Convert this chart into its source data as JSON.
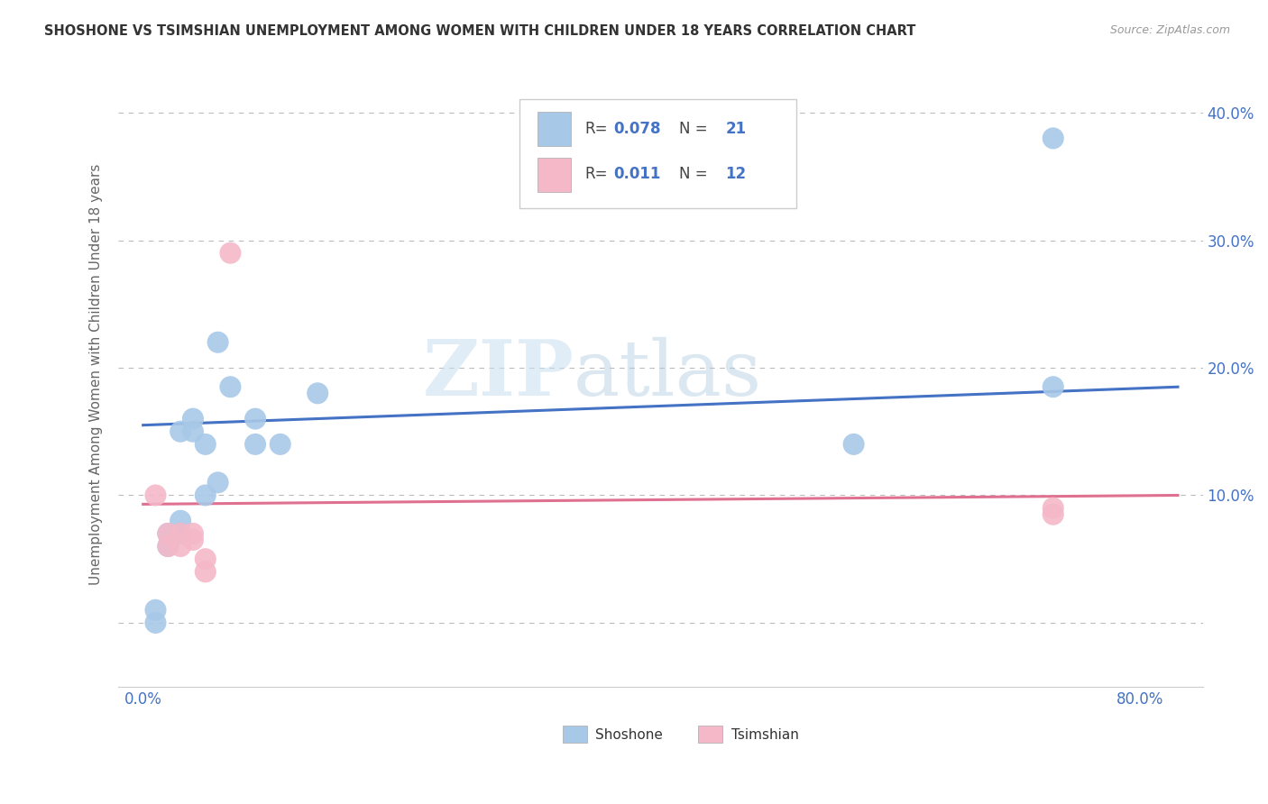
{
  "title": "SHOSHONE VS TSIMSHIAN UNEMPLOYMENT AMONG WOMEN WITH CHILDREN UNDER 18 YEARS CORRELATION CHART",
  "source": "Source: ZipAtlas.com",
  "ylabel": "Unemployment Among Women with Children Under 18 years",
  "xlim": [
    -0.02,
    0.85
  ],
  "ylim": [
    -0.05,
    0.44
  ],
  "shoshone_R": 0.078,
  "shoshone_N": 21,
  "tsimshian_R": 0.011,
  "tsimshian_N": 12,
  "shoshone_color": "#a8c8e8",
  "tsimshian_color": "#f4b8c8",
  "shoshone_line_color": "#4472c4",
  "tsimshian_line_color": "#e07090",
  "watermark_zip": "ZIP",
  "watermark_atlas": "atlas",
  "background_color": "#ffffff",
  "grid_color": "#bbbbbb",
  "shoshone_x": [
    0.01,
    0.01,
    0.02,
    0.02,
    0.03,
    0.03,
    0.03,
    0.04,
    0.04,
    0.05,
    0.05,
    0.06,
    0.06,
    0.07,
    0.09,
    0.09,
    0.11,
    0.14,
    0.57,
    0.73,
    0.73
  ],
  "shoshone_y": [
    0.0,
    0.01,
    0.06,
    0.07,
    0.07,
    0.08,
    0.15,
    0.15,
    0.16,
    0.1,
    0.14,
    0.11,
    0.22,
    0.185,
    0.14,
    0.16,
    0.14,
    0.18,
    0.14,
    0.185,
    0.38
  ],
  "tsimshian_x": [
    0.01,
    0.02,
    0.02,
    0.03,
    0.03,
    0.04,
    0.04,
    0.05,
    0.05,
    0.07,
    0.73,
    0.73
  ],
  "tsimshian_y": [
    0.1,
    0.06,
    0.07,
    0.07,
    0.06,
    0.065,
    0.07,
    0.04,
    0.05,
    0.29,
    0.085,
    0.09
  ],
  "trend_blue_x0": 0.0,
  "trend_blue_y0": 0.155,
  "trend_blue_x1": 0.83,
  "trend_blue_y1": 0.185,
  "trend_pink_x0": 0.0,
  "trend_pink_y0": 0.093,
  "trend_pink_x1": 0.83,
  "trend_pink_y1": 0.1
}
